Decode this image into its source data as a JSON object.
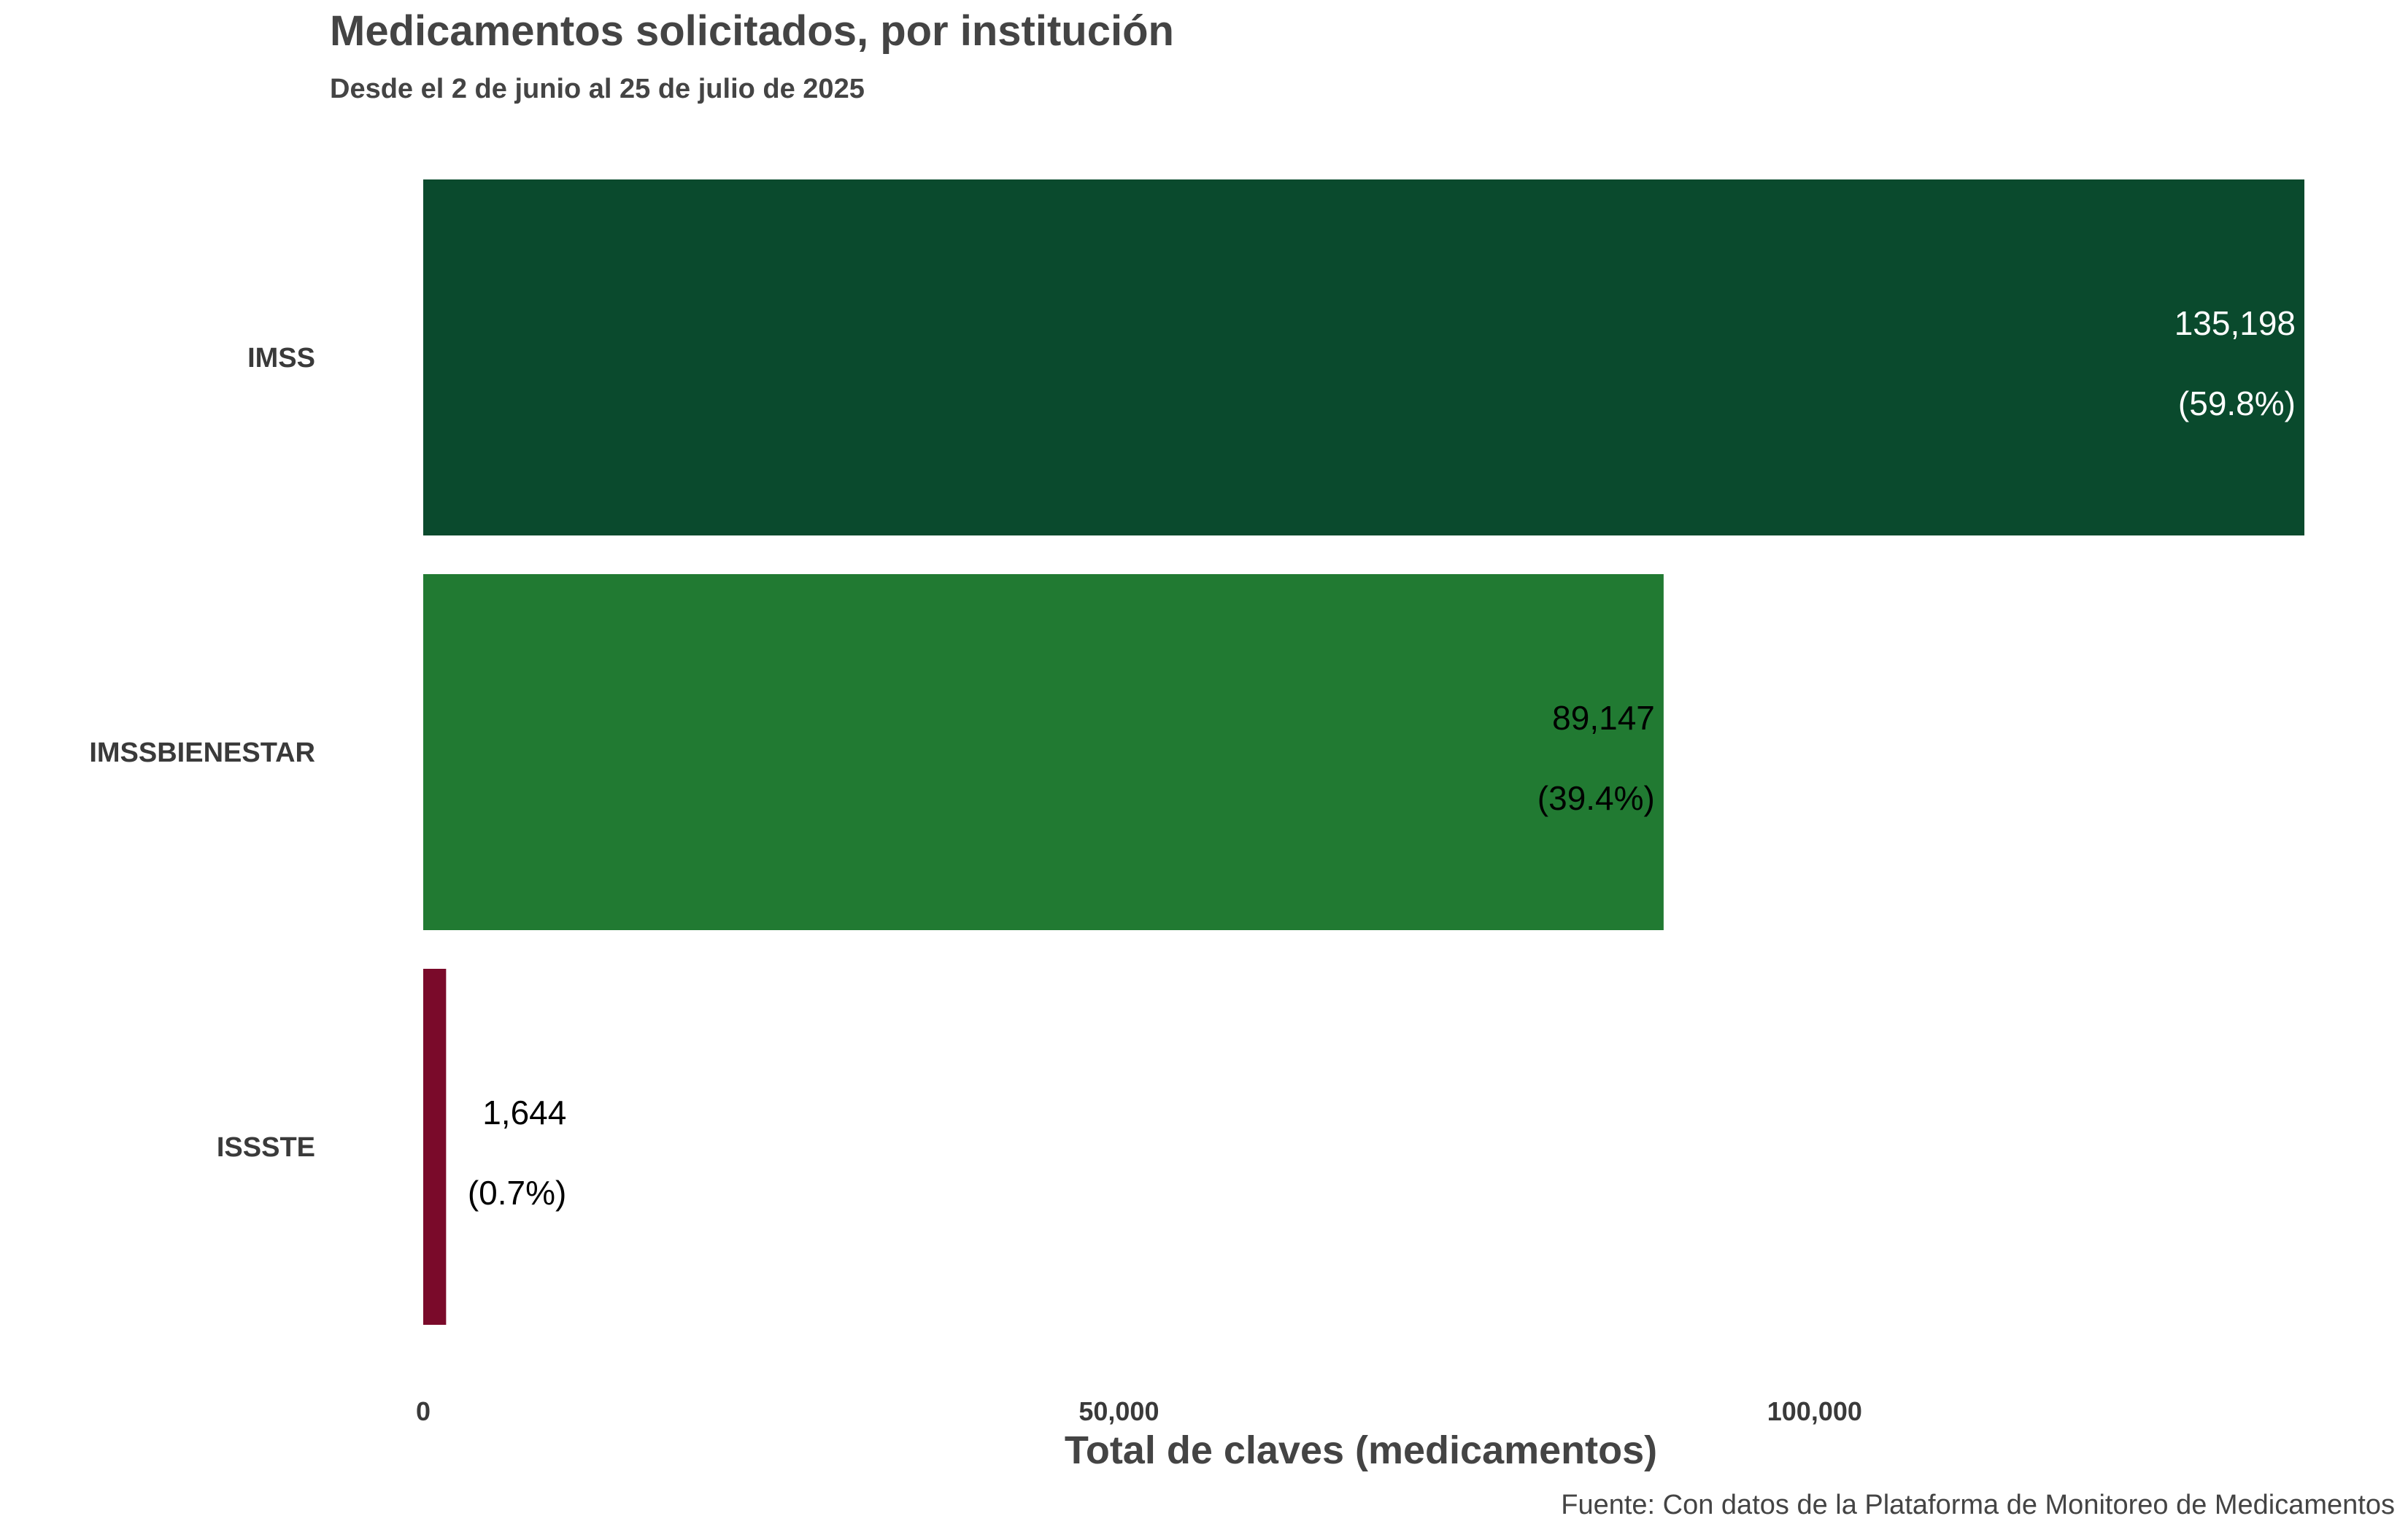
{
  "chart_data": {
    "type": "bar",
    "orientation": "horizontal",
    "title": "Medicamentos solicitados, por institución",
    "subtitle": "Desde el 2 de junio al 25 de julio de 2025",
    "xlabel": "Total de claves (medicamentos)",
    "ylabel": "",
    "caption": "Fuente: Con datos de la Plataforma de Monitoreo de Medicamentos",
    "xlim": [
      0,
      135198
    ],
    "x_ticks": [
      0,
      50000,
      100000
    ],
    "x_tick_labels": [
      "0",
      "50,000",
      "100,000"
    ],
    "grid": false,
    "legend": "none",
    "categories": [
      "IMSS",
      "IMSSBIENESTAR",
      "ISSSTE"
    ],
    "values": [
      135198,
      89147,
      1644
    ],
    "value_labels": [
      "135,198",
      "89,147",
      "1,644"
    ],
    "percent_labels": [
      "(59.8%)",
      "(39.4%)",
      "(0.7%)"
    ],
    "colors": [
      "#0a4a2d",
      "#217a32",
      "#7a0a2a"
    ],
    "label_colors": [
      "#ffffff",
      "#000000",
      "#000000"
    ]
  }
}
